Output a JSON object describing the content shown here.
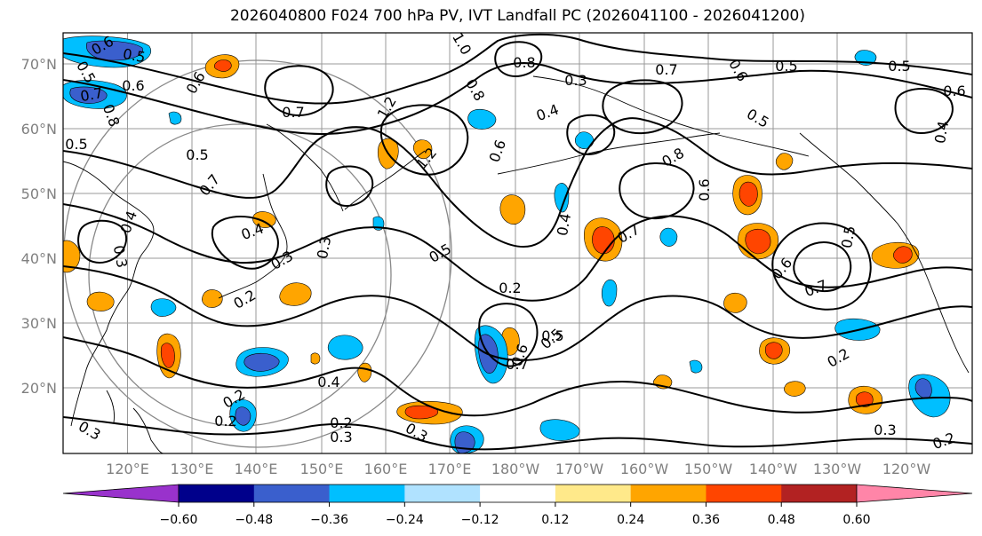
{
  "title": "2026040800 F024 700 hPa PV, IVT Landfall PC (2026041100 - 2026041200)",
  "lat_labels": [
    "70°N",
    "60°N",
    "50°N",
    "40°N",
    "30°N",
    "20°N"
  ],
  "lon_labels": [
    "120°E",
    "130°E",
    "140°E",
    "150°E",
    "160°E",
    "170°E",
    "180°W",
    "170°W",
    "160°W",
    "150°W",
    "140°W",
    "130°W",
    "120°W"
  ],
  "colorbar": {
    "colors": [
      "#9932cc",
      "#00008b",
      "#3a5fcd",
      "#00bfff",
      "#b0e2ff",
      "#ffffff",
      "#ffe98a",
      "#ffa500",
      "#ff4500",
      "#b22222",
      "#ff85a8"
    ],
    "ticks": [
      "−0.60",
      "−0.48",
      "−0.36",
      "−0.24",
      "−0.12",
      "0.12",
      "0.24",
      "0.36",
      "0.48",
      "0.60"
    ]
  },
  "contour_labels": [
    "0.6",
    "0.5",
    "0.7",
    "0.8",
    "0.6",
    "0.5",
    "0.8",
    "1.0",
    "0.8",
    "1.2",
    "0.3",
    "0.4",
    "0.7",
    "0.5",
    "0.5",
    "0.6",
    "0.7",
    "0.6",
    "0.5",
    "0.3",
    "1.2",
    "0.6",
    "0.5",
    "0.4",
    "0.8",
    "0.6",
    "0.7",
    "0.5",
    "0.4",
    "0.3",
    "0.5",
    "0.4",
    "0.5",
    "0.6",
    "0.4",
    "0.7",
    "0.2",
    "0.5",
    "0.6",
    "0.7",
    "0.3",
    "0.2",
    "0.7",
    "0.6",
    "0.5",
    "0.2",
    "0.4",
    "0.3",
    "0.2",
    "0.2",
    "0.3",
    "0.2",
    "0.3",
    "0.2",
    "0.3"
  ],
  "icons": {
    "colorbar_left": "triangle-left",
    "colorbar_right": "triangle-right"
  }
}
